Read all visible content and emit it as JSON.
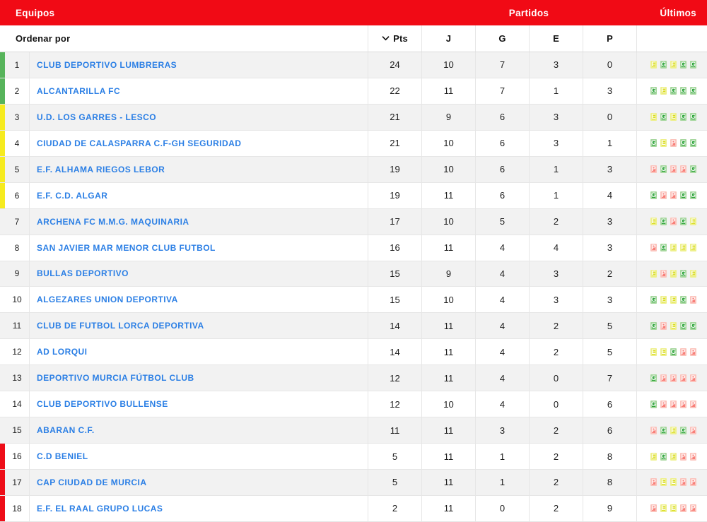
{
  "header": {
    "equipos": "Equipos",
    "partidos": "Partidos",
    "ultimos": "Últimos"
  },
  "subheader": {
    "ordenar_por": "Ordenar por",
    "sorted_column": "Pts",
    "columns": {
      "pts": "Pts",
      "j": "J",
      "g": "G",
      "e": "E",
      "p": "P"
    }
  },
  "colors": {
    "topbar_red": "#F10A15",
    "team_link_blue": "#2B7FE5",
    "row_alt_gray": "#F2F2F2",
    "zones": {
      "promotion": "#57B45B",
      "playoff": "#F6EB1F",
      "relegation": "#EE0D18"
    },
    "badges": {
      "G": {
        "bg": "#2DA43A",
        "border": "#A6D79E"
      },
      "E": {
        "bg": "#D9DC1E",
        "border": "#EEF08C"
      },
      "P": {
        "bg": "#F8807A",
        "border": "#FBC3BC"
      }
    }
  },
  "rows": [
    {
      "pos": 1,
      "team": "CLUB DEPORTIVO LUMBRERAS",
      "pts": 24,
      "j": 10,
      "g": 7,
      "e": 3,
      "p": 0,
      "zone": "promotion",
      "form": [
        "E",
        "G",
        "E",
        "G",
        "G"
      ]
    },
    {
      "pos": 2,
      "team": "ALCANTARILLA FC",
      "pts": 22,
      "j": 11,
      "g": 7,
      "e": 1,
      "p": 3,
      "zone": "promotion",
      "form": [
        "G",
        "E",
        "G",
        "G",
        "G"
      ]
    },
    {
      "pos": 3,
      "team": "U.D. LOS GARRES - LESCO",
      "pts": 21,
      "j": 9,
      "g": 6,
      "e": 3,
      "p": 0,
      "zone": "playoff",
      "form": [
        "E",
        "G",
        "E",
        "G",
        "G"
      ]
    },
    {
      "pos": 4,
      "team": "CIUDAD DE CALASPARRA C.F-GH SEGURIDAD",
      "pts": 21,
      "j": 10,
      "g": 6,
      "e": 3,
      "p": 1,
      "zone": "playoff",
      "form": [
        "G",
        "E",
        "P",
        "G",
        "G"
      ]
    },
    {
      "pos": 5,
      "team": "E.F. ALHAMA RIEGOS LEBOR",
      "pts": 19,
      "j": 10,
      "g": 6,
      "e": 1,
      "p": 3,
      "zone": "playoff",
      "form": [
        "P",
        "G",
        "P",
        "P",
        "G"
      ]
    },
    {
      "pos": 6,
      "team": "E.F. C.D. ALGAR",
      "pts": 19,
      "j": 11,
      "g": 6,
      "e": 1,
      "p": 4,
      "zone": "playoff",
      "form": [
        "G",
        "P",
        "P",
        "G",
        "G"
      ]
    },
    {
      "pos": 7,
      "team": "ARCHENA FC M.M.G. MAQUINARIA",
      "pts": 17,
      "j": 10,
      "g": 5,
      "e": 2,
      "p": 3,
      "zone": "none",
      "form": [
        "E",
        "G",
        "P",
        "G",
        "E"
      ]
    },
    {
      "pos": 8,
      "team": "SAN JAVIER MAR MENOR CLUB FUTBOL",
      "pts": 16,
      "j": 11,
      "g": 4,
      "e": 4,
      "p": 3,
      "zone": "none",
      "form": [
        "P",
        "G",
        "E",
        "E",
        "E"
      ]
    },
    {
      "pos": 9,
      "team": "BULLAS DEPORTIVO",
      "pts": 15,
      "j": 9,
      "g": 4,
      "e": 3,
      "p": 2,
      "zone": "none",
      "form": [
        "E",
        "P",
        "E",
        "G",
        "E"
      ]
    },
    {
      "pos": 10,
      "team": "ALGEZARES UNION DEPORTIVA",
      "pts": 15,
      "j": 10,
      "g": 4,
      "e": 3,
      "p": 3,
      "zone": "none",
      "form": [
        "G",
        "E",
        "E",
        "G",
        "P"
      ]
    },
    {
      "pos": 11,
      "team": "CLUB DE FUTBOL LORCA DEPORTIVA",
      "pts": 14,
      "j": 11,
      "g": 4,
      "e": 2,
      "p": 5,
      "zone": "none",
      "form": [
        "G",
        "P",
        "E",
        "G",
        "G"
      ]
    },
    {
      "pos": 12,
      "team": "AD LORQUI",
      "pts": 14,
      "j": 11,
      "g": 4,
      "e": 2,
      "p": 5,
      "zone": "none",
      "form": [
        "E",
        "E",
        "G",
        "P",
        "P"
      ]
    },
    {
      "pos": 13,
      "team": "DEPORTIVO MURCIA FÚTBOL CLUB",
      "pts": 12,
      "j": 11,
      "g": 4,
      "e": 0,
      "p": 7,
      "zone": "none",
      "form": [
        "G",
        "P",
        "P",
        "P",
        "P"
      ]
    },
    {
      "pos": 14,
      "team": "CLUB DEPORTIVO BULLENSE",
      "pts": 12,
      "j": 10,
      "g": 4,
      "e": 0,
      "p": 6,
      "zone": "none",
      "form": [
        "G",
        "P",
        "P",
        "P",
        "P"
      ]
    },
    {
      "pos": 15,
      "team": "ABARAN C.F.",
      "pts": 11,
      "j": 11,
      "g": 3,
      "e": 2,
      "p": 6,
      "zone": "none",
      "form": [
        "P",
        "G",
        "E",
        "G",
        "P"
      ]
    },
    {
      "pos": 16,
      "team": "C.D BENIEL",
      "pts": 5,
      "j": 11,
      "g": 1,
      "e": 2,
      "p": 8,
      "zone": "relegation",
      "form": [
        "E",
        "G",
        "E",
        "P",
        "P"
      ]
    },
    {
      "pos": 17,
      "team": "CAP CIUDAD DE MURCIA",
      "pts": 5,
      "j": 11,
      "g": 1,
      "e": 2,
      "p": 8,
      "zone": "relegation",
      "form": [
        "P",
        "E",
        "E",
        "P",
        "P"
      ]
    },
    {
      "pos": 18,
      "team": "E.F. EL RAAL GRUPO LUCAS",
      "pts": 2,
      "j": 11,
      "g": 0,
      "e": 2,
      "p": 9,
      "zone": "relegation",
      "form": [
        "P",
        "E",
        "E",
        "P",
        "P"
      ]
    }
  ]
}
